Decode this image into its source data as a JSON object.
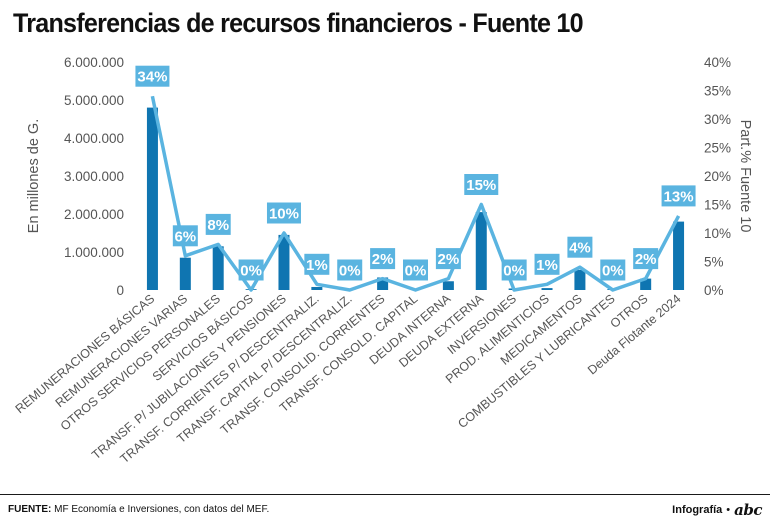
{
  "title": "Transferencias de recursos financieros - Fuente 10",
  "footer": {
    "source_label": "FUENTE:",
    "source_text": "MF Economía e Inversiones, con datos del MEF.",
    "credit_label": "Infografía",
    "credit_bullet": "•",
    "logo_text": "abc"
  },
  "colors": {
    "bar": "#0f75b1",
    "line": "#5ab4e0",
    "label_bg": "#5ab4e0",
    "label_text": "#ffffff",
    "axis_text": "#555555"
  },
  "chart_data": {
    "type": "bar+line",
    "title": "Transferencias de recursos financieros - Fuente 10",
    "categories": [
      "REMUNERACIONES BÁSICAS",
      "REMUNERACIONES VARIAS",
      "OTROS SERVICIOS PERSONALES",
      "SERVICIOS BÁSICOS",
      "TRANSF. P/ JUBILACIONES Y PENSIONES",
      "TRANSF. CORRIENTES P/ DESCENTRALIZ.",
      "TRANSF. CAPITAL P/ DESCENTRALIZ.",
      "TRANSF. CONSOLID. CORRIENTES",
      "TRANSF. CONSOLD. CAPITAL",
      "DEUDA INTERNA",
      "DEUDA EXTERNA",
      "INVERSIONES",
      "PROD. ALIMENTICIOS",
      "MEDICAMENTOS",
      "COMBUSTIBLES Y LUBRICANTES",
      "OTROS",
      "Deuda Flotante 2024"
    ],
    "series": [
      {
        "name": "En millones de G.",
        "type": "bar",
        "axis": "left",
        "values": [
          4800000,
          850000,
          1150000,
          20000,
          1450000,
          80000,
          10000,
          330000,
          30000,
          230000,
          2050000,
          40000,
          50000,
          530000,
          20000,
          300000,
          1800000
        ]
      },
      {
        "name": "Part.% Fuente 10",
        "type": "line",
        "axis": "right",
        "values": [
          34,
          6,
          8,
          0,
          10,
          1,
          0,
          2,
          0,
          2,
          15,
          0,
          1,
          4,
          0,
          2,
          13
        ],
        "labels": [
          "34%",
          "6%",
          "8%",
          "0%",
          "10%",
          "1%",
          "0%",
          "2%",
          "0%",
          "2%",
          "15%",
          "0%",
          "1%",
          "4%",
          "0%",
          "2%",
          "13%"
        ]
      }
    ],
    "ylabel_left": "En millones de G.",
    "ylabel_right": "Part.% Fuente 10",
    "ylim_left": [
      0,
      6000000
    ],
    "ylim_right": [
      0,
      40
    ],
    "yticks_left": [
      "0",
      "1.000.000",
      "2.000.000",
      "3.000.000",
      "4.000.000",
      "5.000.000",
      "6.000.000"
    ],
    "yticks_right": [
      "0%",
      "5%",
      "10%",
      "15%",
      "20%",
      "25%",
      "30%",
      "35%",
      "40%"
    ]
  }
}
